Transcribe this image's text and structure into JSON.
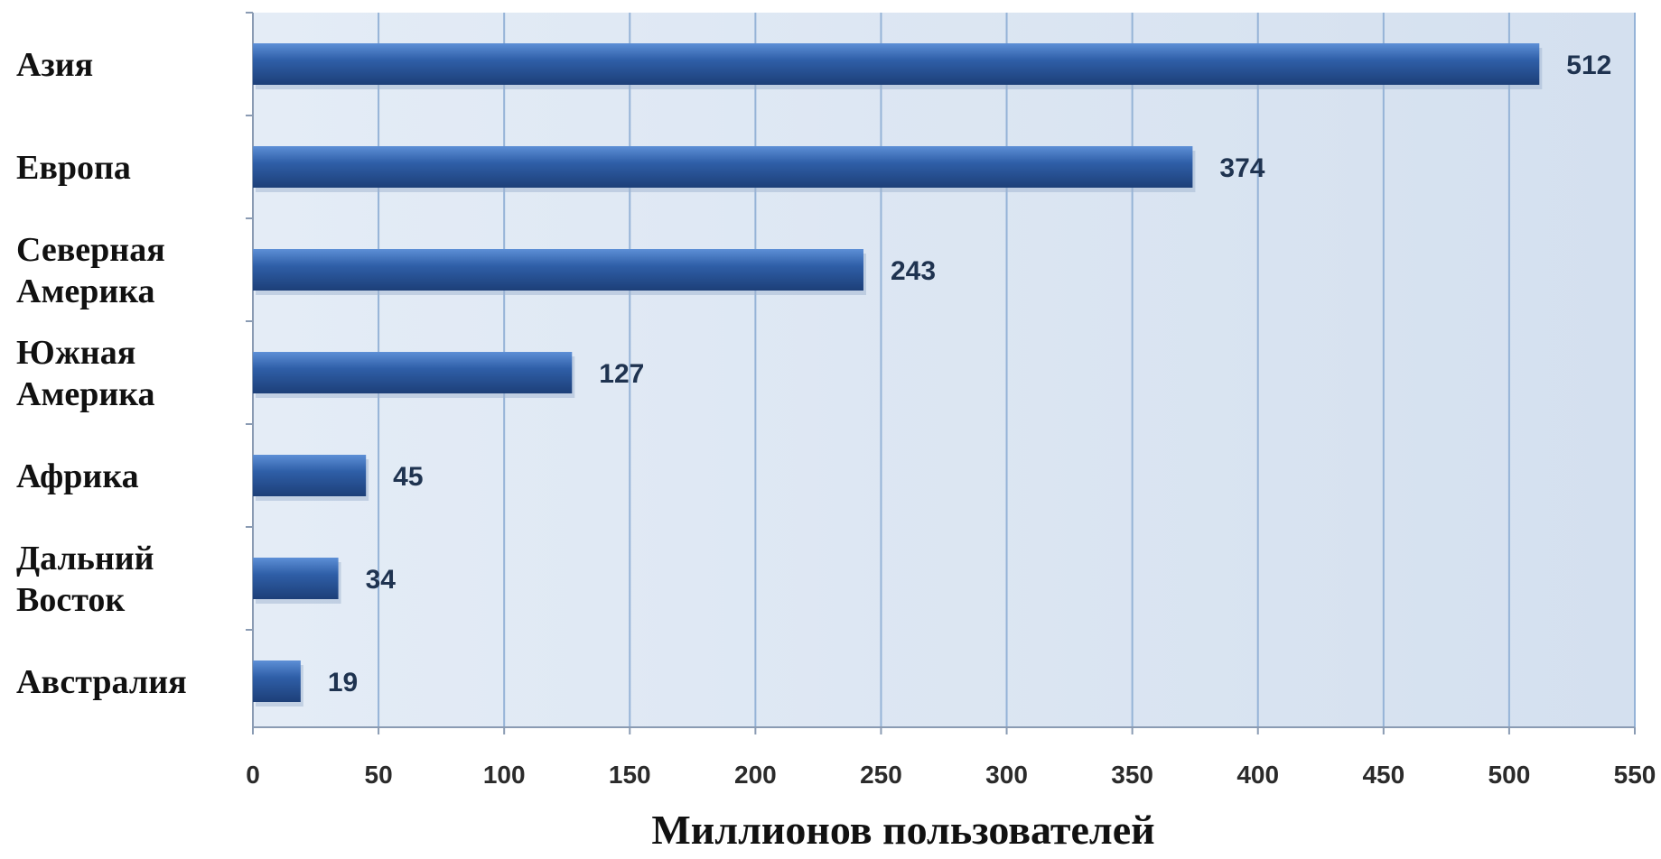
{
  "chart_data": {
    "type": "bar",
    "orientation": "horizontal",
    "categories": [
      [
        "Азия"
      ],
      [
        "Европа"
      ],
      [
        "Северная",
        "Америка"
      ],
      [
        "Южная",
        "Америка"
      ],
      [
        "Африка"
      ],
      [
        "Дальний",
        "Восток"
      ],
      [
        "Австралия"
      ]
    ],
    "values": [
      512,
      374,
      243,
      127,
      45,
      34,
      19
    ],
    "value_labels": [
      "512",
      "374",
      "243",
      "127",
      "45",
      "34",
      "19"
    ],
    "xlabel": "Миллионов пользователей",
    "xlim": [
      0,
      550
    ],
    "xticks": [
      0,
      50,
      100,
      150,
      200,
      250,
      300,
      350,
      400,
      450,
      500,
      550
    ],
    "grid": true,
    "colors": {
      "plot_background": "#dbe5f1",
      "bar": "#2f5fa8",
      "bar_light": "#5d8fd6",
      "bar_dark": "#1d3f78",
      "grid": "#95b3d7"
    }
  }
}
